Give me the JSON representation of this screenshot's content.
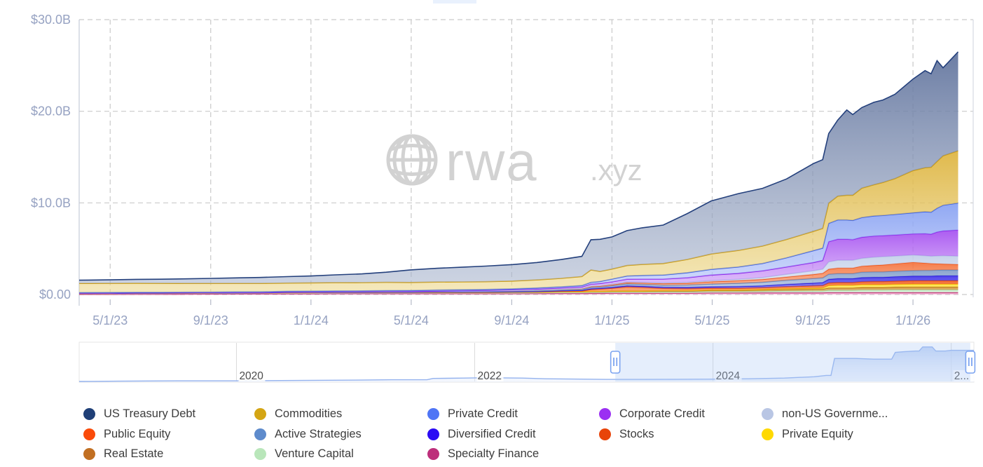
{
  "watermark": {
    "brand": "rwa",
    "suffix": ".xyz"
  },
  "chart_data": {
    "type": "area",
    "stacked": true,
    "unit": "USD billions",
    "grid": true,
    "legend_position": "bottom",
    "y_axis": {
      "labels": [
        "$30.0B",
        "$20.0B",
        "$10.0B",
        "$0.00"
      ],
      "values": [
        30,
        20,
        10,
        0
      ],
      "range": [
        0,
        30
      ]
    },
    "x_axis": {
      "labels": [
        "5/1/23",
        "9/1/23",
        "1/1/24",
        "5/1/24",
        "9/1/24",
        "1/1/25",
        "5/1/25",
        "9/1/25",
        "1/1/26"
      ],
      "values": [
        2023.333,
        2023.667,
        2024.0,
        2024.333,
        2024.667,
        2025.0,
        2025.333,
        2025.667,
        2026.0
      ],
      "range": [
        2023.23,
        2026.2
      ]
    },
    "x": [
      2023.23,
      2023.33,
      2023.42,
      2023.5,
      2023.58,
      2023.67,
      2023.75,
      2023.83,
      2023.92,
      2024.0,
      2024.08,
      2024.17,
      2024.25,
      2024.33,
      2024.42,
      2024.5,
      2024.58,
      2024.67,
      2024.75,
      2024.83,
      2024.9,
      2024.93,
      2024.96,
      2025.0,
      2025.05,
      2025.1,
      2025.17,
      2025.25,
      2025.33,
      2025.42,
      2025.5,
      2025.58,
      2025.67,
      2025.7,
      2025.72,
      2025.75,
      2025.78,
      2025.8,
      2025.83,
      2025.87,
      2025.9,
      2025.94,
      2026.0,
      2026.04,
      2026.06,
      2026.08,
      2026.1,
      2026.15
    ],
    "series": [
      {
        "name": "US Treasury Debt",
        "color": "#1f3f77",
        "line": "#24407c",
        "fill_top": "#5f729c",
        "fill_bottom": "#aab6ce",
        "values": [
          0.35,
          0.38,
          0.42,
          0.45,
          0.5,
          0.55,
          0.6,
          0.65,
          0.7,
          0.75,
          0.85,
          0.95,
          1.1,
          1.37,
          1.5,
          1.6,
          1.7,
          1.8,
          1.9,
          2.05,
          2.2,
          3.3,
          3.5,
          3.5,
          3.8,
          4.0,
          4.2,
          5.0,
          5.8,
          6.2,
          6.3,
          6.6,
          7.4,
          7.5,
          7.6,
          8.3,
          9.3,
          8.8,
          8.8,
          9.0,
          9.0,
          9.2,
          10.0,
          10.6,
          10.2,
          11.0,
          9.6,
          10.8
        ]
      },
      {
        "name": "Commodities",
        "color": "#d4a514",
        "line": "#cf9d0e",
        "fill_top": "#ddb33c",
        "fill_bottom": "#edd98f",
        "values": [
          1.0,
          1.0,
          0.99,
          0.98,
          0.96,
          0.95,
          0.93,
          0.92,
          0.9,
          0.9,
          0.9,
          0.9,
          0.9,
          0.88,
          0.87,
          0.86,
          0.85,
          0.85,
          0.88,
          0.92,
          0.98,
          1.35,
          1.1,
          1.1,
          1.15,
          1.2,
          1.25,
          1.45,
          1.67,
          1.8,
          1.9,
          2.0,
          2.1,
          2.15,
          2.2,
          2.6,
          2.7,
          2.75,
          3.2,
          3.4,
          3.6,
          3.9,
          4.6,
          4.8,
          4.9,
          5.1,
          5.4,
          5.7
        ]
      },
      {
        "name": "Private Credit",
        "color": "#4f75f5",
        "line": "#3c62e8",
        "fill_top": "#86a0f2",
        "fill_bottom": "#b7c6f9",
        "values": [
          0.05,
          0.05,
          0.05,
          0.05,
          0.05,
          0.05,
          0.06,
          0.06,
          0.07,
          0.08,
          0.08,
          0.08,
          0.09,
          0.09,
          0.1,
          0.1,
          0.1,
          0.1,
          0.12,
          0.13,
          0.15,
          0.2,
          0.22,
          0.3,
          0.35,
          0.4,
          0.45,
          0.55,
          0.62,
          0.7,
          0.8,
          1.0,
          1.3,
          1.35,
          2.0,
          2.1,
          2.1,
          2.1,
          2.15,
          2.2,
          2.2,
          2.25,
          2.3,
          2.4,
          2.4,
          2.6,
          2.8,
          2.95
        ]
      },
      {
        "name": "Corporate Credit",
        "color": "#9b30f2",
        "line": "#8f25ea",
        "fill_top": "#a44ef0",
        "fill_bottom": "#d2a4f8",
        "values": [
          0,
          0,
          0,
          0,
          0,
          0,
          0,
          0,
          0,
          0.01,
          0.01,
          0.01,
          0.02,
          0.02,
          0.03,
          0.05,
          0.06,
          0.08,
          0.1,
          0.12,
          0.15,
          0.2,
          0.22,
          0.25,
          0.3,
          0.35,
          0.4,
          0.5,
          0.61,
          0.65,
          0.74,
          0.8,
          0.9,
          0.95,
          2.2,
          2.3,
          2.3,
          2.25,
          2.3,
          2.3,
          2.3,
          2.3,
          2.3,
          2.4,
          2.4,
          2.6,
          2.7,
          2.85
        ]
      },
      {
        "name": "non-US Governme...",
        "color": "#b9c6e4",
        "line": "#b4c3e4",
        "fill_top": "#c2cfe9",
        "fill_bottom": "#d8e1f2",
        "values": [
          0,
          0,
          0,
          0,
          0,
          0,
          0,
          0,
          0,
          0,
          0,
          0,
          0,
          0,
          0,
          0,
          0,
          0.01,
          0.01,
          0.02,
          0.03,
          0.05,
          0.05,
          0.05,
          0.06,
          0.07,
          0.08,
          0.1,
          0.12,
          0.15,
          0.2,
          0.3,
          0.4,
          0.45,
          0.8,
          0.85,
          0.85,
          0.85,
          0.85,
          0.9,
          0.9,
          0.85,
          0.8,
          0.8,
          0.8,
          0.85,
          0.9,
          0.9
        ]
      },
      {
        "name": "Public Equity",
        "color": "#fa4b0a",
        "line": "#ef5518",
        "fill_top": "#f4703a",
        "fill_bottom": "#f89a6c",
        "values": [
          0.01,
          0.01,
          0.01,
          0.01,
          0.01,
          0.01,
          0.01,
          0.01,
          0.02,
          0.02,
          0.02,
          0.02,
          0.02,
          0.02,
          0.03,
          0.03,
          0.03,
          0.04,
          0.05,
          0.06,
          0.08,
          0.1,
          0.1,
          0.12,
          0.15,
          0.15,
          0.18,
          0.2,
          0.25,
          0.28,
          0.3,
          0.35,
          0.45,
          0.5,
          0.55,
          0.6,
          0.6,
          0.6,
          0.65,
          0.7,
          0.75,
          0.8,
          0.9,
          0.8,
          0.75,
          0.7,
          0.65,
          0.6
        ]
      },
      {
        "name": "Active Strategies",
        "color": "#5e8bcc",
        "line": "#5f87c0",
        "fill_top": "#7f9cc9",
        "fill_bottom": "#a9bedb",
        "values": [
          0.02,
          0.02,
          0.02,
          0.02,
          0.02,
          0.02,
          0.02,
          0.02,
          0.03,
          0.03,
          0.03,
          0.04,
          0.04,
          0.05,
          0.05,
          0.06,
          0.07,
          0.08,
          0.09,
          0.1,
          0.12,
          0.15,
          0.15,
          0.18,
          0.2,
          0.2,
          0.22,
          0.25,
          0.3,
          0.35,
          0.4,
          0.45,
          0.5,
          0.52,
          0.55,
          0.55,
          0.55,
          0.55,
          0.6,
          0.6,
          0.6,
          0.6,
          0.6,
          0.62,
          0.62,
          0.63,
          0.64,
          0.64
        ]
      },
      {
        "name": "Diversified Credit",
        "color": "#2b0cf4",
        "line": "#2312e0",
        "fill_top": "#3d2ee8",
        "fill_bottom": "#6b60f0",
        "values": [
          0,
          0,
          0,
          0,
          0,
          0,
          0,
          0,
          0,
          0,
          0,
          0,
          0.01,
          0.01,
          0.01,
          0.01,
          0.02,
          0.02,
          0.03,
          0.04,
          0.05,
          0.08,
          0.08,
          0.1,
          0.12,
          0.12,
          0.13,
          0.14,
          0.15,
          0.18,
          0.2,
          0.25,
          0.3,
          0.32,
          0.4,
          0.42,
          0.42,
          0.42,
          0.45,
          0.45,
          0.45,
          0.48,
          0.5,
          0.5,
          0.5,
          0.52,
          0.53,
          0.53
        ]
      },
      {
        "name": "Stocks",
        "color": "#e8440a",
        "line": "#e64a0e",
        "fill_top": "#ef5a1a",
        "fill_bottom": "#f8854e",
        "values": [
          0.01,
          0.01,
          0.01,
          0.01,
          0.01,
          0.01,
          0.01,
          0.01,
          0.02,
          0.02,
          0.02,
          0.02,
          0.02,
          0.02,
          0.03,
          0.03,
          0.03,
          0.04,
          0.05,
          0.07,
          0.1,
          0.2,
          0.25,
          0.3,
          0.45,
          0.4,
          0.25,
          0.22,
          0.2,
          0.2,
          0.2,
          0.22,
          0.25,
          0.26,
          0.3,
          0.3,
          0.3,
          0.3,
          0.32,
          0.35,
          0.35,
          0.35,
          0.38,
          0.38,
          0.38,
          0.38,
          0.38,
          0.38
        ]
      },
      {
        "name": "Private Equity",
        "color": "#ffd900",
        "line": "#f2c50a",
        "fill_top": "#ffdf33",
        "fill_bottom": "#ffec80",
        "values": [
          0,
          0,
          0,
          0,
          0,
          0,
          0,
          0,
          0,
          0,
          0,
          0,
          0,
          0,
          0,
          0,
          0,
          0,
          0,
          0.01,
          0.01,
          0.02,
          0.02,
          0.03,
          0.03,
          0.03,
          0.04,
          0.04,
          0.05,
          0.05,
          0.05,
          0.08,
          0.1,
          0.12,
          0.25,
          0.3,
          0.3,
          0.3,
          0.3,
          0.3,
          0.3,
          0.3,
          0.31,
          0.31,
          0.31,
          0.31,
          0.31,
          0.31
        ]
      },
      {
        "name": "Real Estate",
        "color": "#c16f22",
        "line": "#b06f10",
        "fill_top": "#cf9030",
        "fill_bottom": "#e3b765",
        "values": [
          0.02,
          0.02,
          0.02,
          0.02,
          0.02,
          0.02,
          0.02,
          0.02,
          0.03,
          0.03,
          0.03,
          0.03,
          0.03,
          0.03,
          0.04,
          0.04,
          0.04,
          0.05,
          0.05,
          0.06,
          0.06,
          0.08,
          0.08,
          0.08,
          0.09,
          0.09,
          0.1,
          0.1,
          0.12,
          0.12,
          0.15,
          0.18,
          0.2,
          0.2,
          0.25,
          0.25,
          0.25,
          0.25,
          0.28,
          0.28,
          0.28,
          0.3,
          0.31,
          0.31,
          0.31,
          0.31,
          0.31,
          0.31
        ]
      },
      {
        "name": "Venture Capital",
        "color": "#b9e6ba",
        "line": "#a8d9ab",
        "fill_top": "#c3e9c4",
        "fill_bottom": "#ddf3dd",
        "values": [
          0.08,
          0.09,
          0.1,
          0.1,
          0.1,
          0.1,
          0.1,
          0.1,
          0.1,
          0.1,
          0.1,
          0.1,
          0.1,
          0.1,
          0.1,
          0.1,
          0.1,
          0.1,
          0.1,
          0.11,
          0.11,
          0.12,
          0.12,
          0.12,
          0.12,
          0.12,
          0.13,
          0.13,
          0.15,
          0.15,
          0.15,
          0.18,
          0.2,
          0.2,
          0.25,
          0.25,
          0.25,
          0.25,
          0.28,
          0.28,
          0.28,
          0.3,
          0.3,
          0.3,
          0.3,
          0.3,
          0.3,
          0.3
        ]
      },
      {
        "name": "Specialty Finance",
        "color": "#bd2f7b",
        "line": "#c02470",
        "fill_top": "#e070a8",
        "fill_bottom": "#f0a8cc",
        "values": [
          0.02,
          0.02,
          0.03,
          0.03,
          0.04,
          0.05,
          0.06,
          0.07,
          0.08,
          0.08,
          0.1,
          0.1,
          0.1,
          0.1,
          0.1,
          0.1,
          0.1,
          0.1,
          0.11,
          0.12,
          0.12,
          0.13,
          0.13,
          0.15,
          0.15,
          0.15,
          0.15,
          0.15,
          0.18,
          0.18,
          0.2,
          0.2,
          0.2,
          0.2,
          0.22,
          0.22,
          0.22,
          0.22,
          0.22,
          0.22,
          0.22,
          0.22,
          0.22,
          0.22,
          0.22,
          0.22,
          0.22,
          0.22
        ]
      }
    ]
  },
  "brush": {
    "year_labels": [
      "2020",
      "2022",
      "2024",
      "2..."
    ],
    "year_values": [
      2020,
      2022,
      2024,
      2026
    ],
    "x_range": [
      2018.68,
      2026.19
    ],
    "selection": [
      2023.18,
      2026.16
    ],
    "x": [
      2018.68,
      2019.0,
      2019.5,
      2020.0,
      2020.5,
      2021.0,
      2021.3,
      2021.6,
      2021.65,
      2021.9,
      2022.1,
      2022.4,
      2022.6,
      2022.9,
      2023.1,
      2023.4,
      2023.7,
      2024.0,
      2024.3,
      2024.6,
      2024.85,
      2024.95,
      2024.99,
      2025.02,
      2025.2,
      2025.35,
      2025.45,
      2025.5,
      2025.53,
      2025.6,
      2025.7,
      2025.73,
      2025.76,
      2025.84,
      2025.87,
      2025.95,
      2026.0,
      2026.1,
      2026.19
    ],
    "values": [
      0.018,
      0.026,
      0.035,
      0.035,
      0.044,
      0.053,
      0.061,
      0.061,
      0.096,
      0.105,
      0.114,
      0.105,
      0.088,
      0.079,
      0.07,
      0.07,
      0.074,
      0.079,
      0.088,
      0.105,
      0.14,
      0.175,
      0.175,
      0.614,
      0.614,
      0.596,
      0.596,
      0.596,
      0.772,
      0.789,
      0.807,
      0.807,
      0.912,
      0.912,
      0.807,
      0.807,
      0.825,
      0.825,
      0.825
    ],
    "line_color": "#94b2ee",
    "fill_color": "#bcd0f4",
    "selection_tint": "rgba(168,199,244,0.30)",
    "handle_color": "#7ca4f0"
  },
  "style_colors": {
    "axis_text": "#96a2c2",
    "grid_line": "#c9c9c9",
    "watermark": "#d2d2d2",
    "year_text": "#4b4b4b"
  }
}
